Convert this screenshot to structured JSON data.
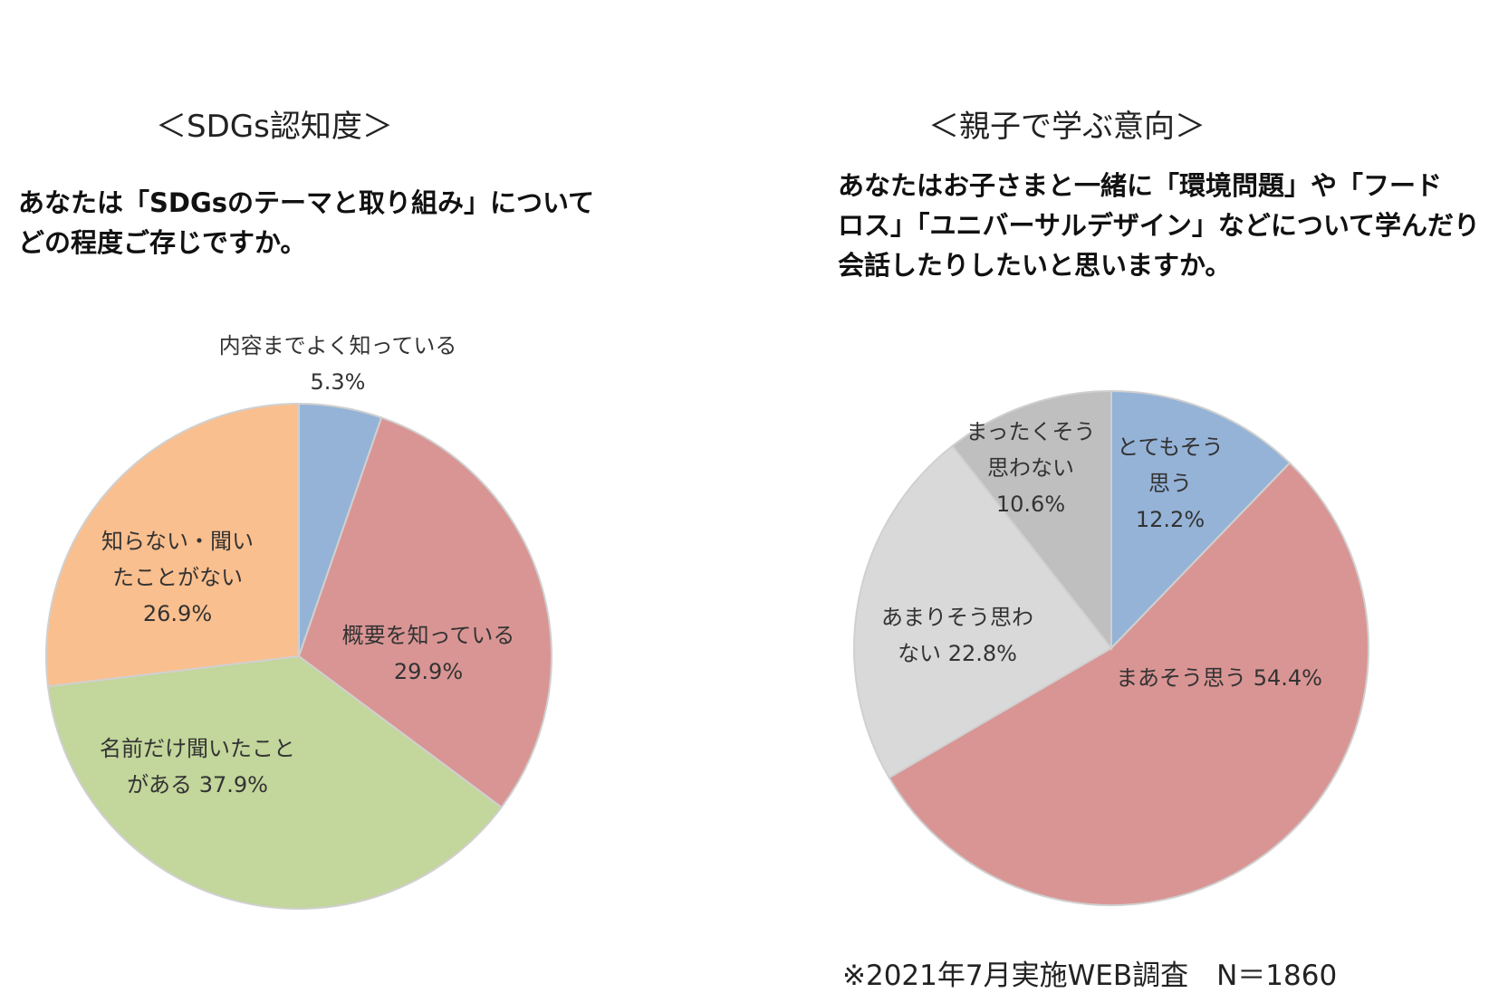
{
  "charts": [
    {
      "title": "＜SDGs認知度＞",
      "question_lines": [
        "あなたは「SDGsのテーマと取り組み」について",
        "どの程度ご存じですか。"
      ]
    },
    {
      "title": "＜親子で学ぶ意向＞",
      "question_lines": [
        "あなたはお子さまと一緒に「環境問題」や「フード",
        "ロス」「ユニバーサルデザイン」などについて学んだり",
        "会話したりしたいと思いますか。"
      ]
    }
  ],
  "chart_data": [
    {
      "type": "pie",
      "title": "＜SDGs認知度＞",
      "slices": [
        {
          "label": "内容までよく知っている",
          "label_lines": [
            "内容までよく知っている",
            "5.3%"
          ],
          "value": 5.3,
          "color": "#95B3D7"
        },
        {
          "label": "概要を知っている",
          "label_lines": [
            "概要を知っている",
            "29.9%"
          ],
          "value": 29.9,
          "color": "#D99594"
        },
        {
          "label": "名前だけ聞いたことがある",
          "label_lines": [
            "名前だけ聞いたこと",
            "がある 37.9%"
          ],
          "value": 37.9,
          "color": "#C3D69B"
        },
        {
          "label": "知らない・聞いたことがない",
          "label_lines": [
            "知らない・聞い",
            "たことがない",
            "26.9%"
          ],
          "value": 26.9,
          "color": "#FABF8F"
        }
      ]
    },
    {
      "type": "pie",
      "title": "＜親子で学ぶ意向＞",
      "slices": [
        {
          "label": "とてもそう思う",
          "label_lines": [
            "とてもそう",
            "思う",
            "12.2%"
          ],
          "value": 12.2,
          "color": "#95B3D7"
        },
        {
          "label": "まあそう思う",
          "label_lines": [
            "まあそう思う 54.4%"
          ],
          "value": 54.4,
          "color": "#D99594"
        },
        {
          "label": "あまりそう思わない",
          "label_lines": [
            "あまりそう思わ",
            "ない 22.8%"
          ],
          "value": 22.8,
          "color": "#D9D9D9"
        },
        {
          "label": "まったくそう思わない",
          "label_lines": [
            "まったくそう",
            "思わない",
            "10.6%"
          ],
          "value": 10.6,
          "color": "#BFBFBF"
        }
      ]
    }
  ],
  "footnote": "※2021年7月実施WEB調査　N＝1860"
}
